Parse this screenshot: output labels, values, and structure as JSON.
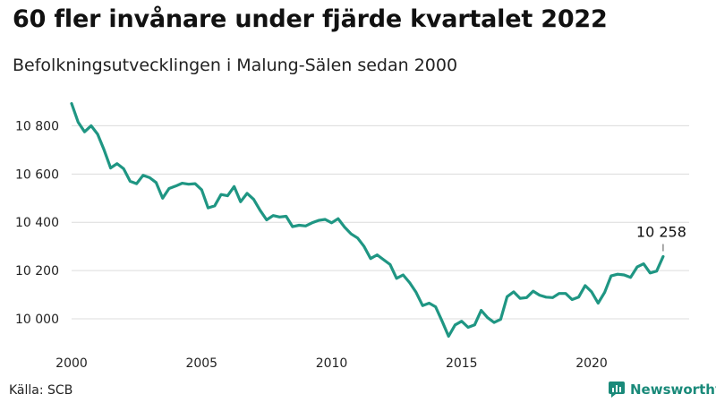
{
  "title": "60 fler invånare under fjärde kvartalet 2022",
  "subtitle": "Befolkningsutvecklingen i Malung-Sälen sedan 2000",
  "source": "Källa: SCB",
  "brand": {
    "name": "Newsworthy",
    "color": "#1a8a7a"
  },
  "chart_data": {
    "type": "line",
    "title": "60 fler invånare under fjärde kvartalet 2022",
    "subtitle": "Befolkningsutvecklingen i Malung-Sälen sedan 2000",
    "xlabel": "",
    "ylabel": "",
    "x_unit": "quarter",
    "xlim": [
      2000.0,
      2023.2
    ],
    "ylim": [
      9900,
      10950
    ],
    "grid": true,
    "line_color": "#1f9683",
    "x_ticks": [
      {
        "value": 2000,
        "label": "2000"
      },
      {
        "value": 2005,
        "label": "2005"
      },
      {
        "value": 2010,
        "label": "2010"
      },
      {
        "value": 2015,
        "label": "2015"
      },
      {
        "value": 2020,
        "label": "2020"
      }
    ],
    "y_ticks": [
      {
        "value": 10000,
        "label": "10 000"
      },
      {
        "value": 10200,
        "label": "10 200"
      },
      {
        "value": 10400,
        "label": "10 400"
      },
      {
        "value": 10600,
        "label": "10 600"
      },
      {
        "value": 10800,
        "label": "10 800"
      }
    ],
    "annotation": {
      "label": "10 258",
      "x": 2022.75,
      "y": 10258
    },
    "series": [
      {
        "x": [
          2000.0,
          2000.25,
          2000.5,
          2000.75,
          2001.0,
          2001.25,
          2001.5,
          2001.75,
          2002.0,
          2002.25,
          2002.5,
          2002.75,
          2003.0,
          2003.25,
          2003.5,
          2003.75,
          2004.0,
          2004.25,
          2004.5,
          2004.75,
          2005.0,
          2005.25,
          2005.5,
          2005.75,
          2006.0,
          2006.25,
          2006.5,
          2006.75,
          2007.0,
          2007.25,
          2007.5,
          2007.75,
          2008.0,
          2008.25,
          2008.5,
          2008.75,
          2009.0,
          2009.25,
          2009.5,
          2009.75,
          2010.0,
          2010.25,
          2010.5,
          2010.75,
          2011.0,
          2011.25,
          2011.5,
          2011.75,
          2012.0,
          2012.25,
          2012.5,
          2012.75,
          2013.0,
          2013.25,
          2013.5,
          2013.75,
          2014.0,
          2014.25,
          2014.5,
          2014.75,
          2015.0,
          2015.25,
          2015.5,
          2015.75,
          2016.0,
          2016.25,
          2016.5,
          2016.75,
          2017.0,
          2017.25,
          2017.5,
          2017.75,
          2018.0,
          2018.25,
          2018.5,
          2018.75,
          2019.0,
          2019.25,
          2019.5,
          2019.75,
          2020.0,
          2020.25,
          2020.5,
          2020.75,
          2021.0,
          2021.25,
          2021.5,
          2021.75,
          2022.0,
          2022.25,
          2022.5,
          2022.75
        ],
        "values": [
          10892,
          10815,
          10775,
          10800,
          10765,
          10700,
          10625,
          10643,
          10622,
          10570,
          10560,
          10595,
          10585,
          10565,
          10500,
          10540,
          10550,
          10562,
          10558,
          10560,
          10535,
          10460,
          10468,
          10515,
          10510,
          10548,
          10485,
          10520,
          10495,
          10450,
          10410,
          10428,
          10422,
          10425,
          10382,
          10388,
          10385,
          10398,
          10408,
          10412,
          10398,
          10415,
          10380,
          10352,
          10335,
          10300,
          10250,
          10265,
          10245,
          10225,
          10168,
          10182,
          10150,
          10110,
          10055,
          10065,
          10050,
          9990,
          9928,
          9975,
          9990,
          9965,
          9975,
          10035,
          10005,
          9985,
          9998,
          10092,
          10112,
          10085,
          10088,
          10115,
          10098,
          10090,
          10088,
          10105,
          10105,
          10080,
          10090,
          10138,
          10112,
          10065,
          10110,
          10178,
          10185,
          10182,
          10172,
          10215,
          10228,
          10190,
          10198,
          10258
        ]
      }
    ]
  }
}
